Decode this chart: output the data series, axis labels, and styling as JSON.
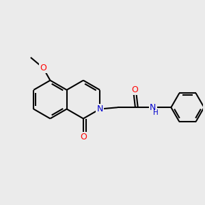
{
  "bg_color": "#ebebeb",
  "atom_color_C": "#000000",
  "atom_color_N": "#0000cc",
  "atom_color_O": "#ff0000",
  "bond_color": "#000000",
  "bond_width": 1.5,
  "font_size_atoms": 9,
  "xlim": [
    0,
    10
  ],
  "ylim": [
    0,
    10
  ]
}
